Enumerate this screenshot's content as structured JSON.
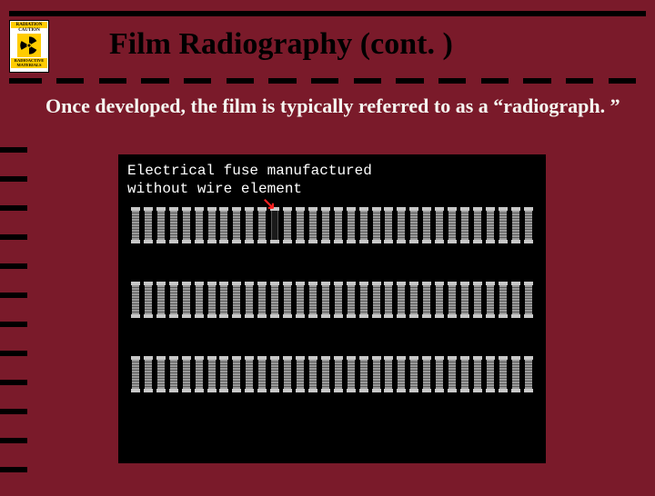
{
  "colors": {
    "slide_bg": "#7a1a2a",
    "black": "#000000",
    "text_light": "#f5f5f0",
    "badge_yellow": "#ffcc00",
    "arrow_red": "#ff2020",
    "fuse_light": "#c8c8c8",
    "fuse_stripe_a": "#9a9a9a",
    "fuse_stripe_b": "#5a5a5a"
  },
  "badge": {
    "top": "RADIATION",
    "mid": "CAUTION",
    "bot": "RADIOACTIVE MATERIALS"
  },
  "title": "Film Radiography (cont. )",
  "subtitle": "Once developed, the film is typically referred to as a “radiograph. ”",
  "radiograph": {
    "caption_line1": "Electrical fuse manufactured",
    "caption_line2": "without wire element",
    "rows": 3,
    "fuses_per_row": 32,
    "defect_row": 0,
    "defect_index": 11,
    "arrow_glyph": "↘"
  },
  "layout": {
    "tick_gaps": 15,
    "side_dashes": 12
  }
}
